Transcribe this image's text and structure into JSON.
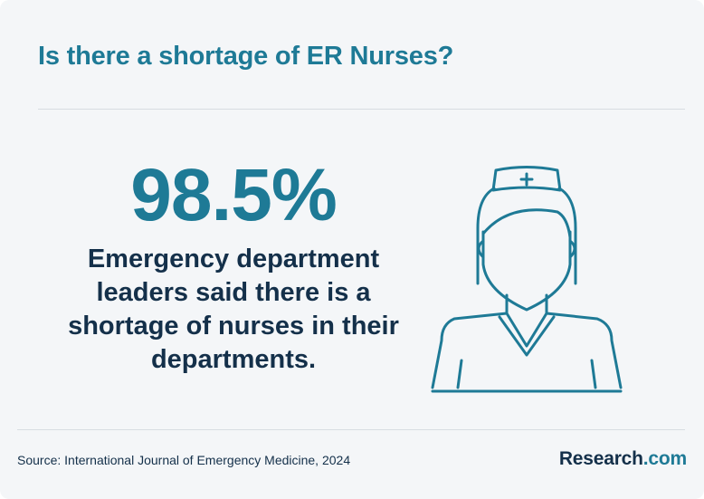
{
  "title": "Is there a shortage of ER Nurses?",
  "stat": {
    "value": "98.5%",
    "description": "Emergency department leaders said there is a shortage of nurses in their departments."
  },
  "icon": "nurse-icon",
  "footer": {
    "source": "Source: International Journal of Emergency Medicine, 2024",
    "logo_main": "Research",
    "logo_suffix": ".com"
  },
  "colors": {
    "accent": "#1e7a96",
    "dark_text": "#14304a",
    "background": "#f4f6f8"
  }
}
